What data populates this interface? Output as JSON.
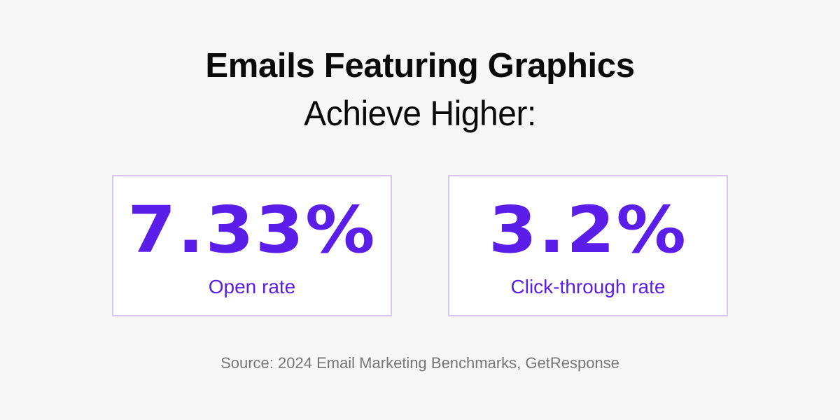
{
  "header": {
    "title": "Emails Featuring Graphics",
    "subtitle": "Achieve Higher:"
  },
  "stats": [
    {
      "value": "7.33%",
      "label": "Open rate"
    },
    {
      "value": "3.2%",
      "label": "Click-through rate"
    }
  ],
  "footer": {
    "source": "Source: 2024 Email Marketing Benchmarks, GetResponse"
  },
  "colors": {
    "background": "#f6f6f6",
    "accent": "#5b1ee8",
    "card_border": "#d6c6fb",
    "card_background": "#ffffff",
    "title_text": "#0a0a0a",
    "source_text": "#767676"
  }
}
